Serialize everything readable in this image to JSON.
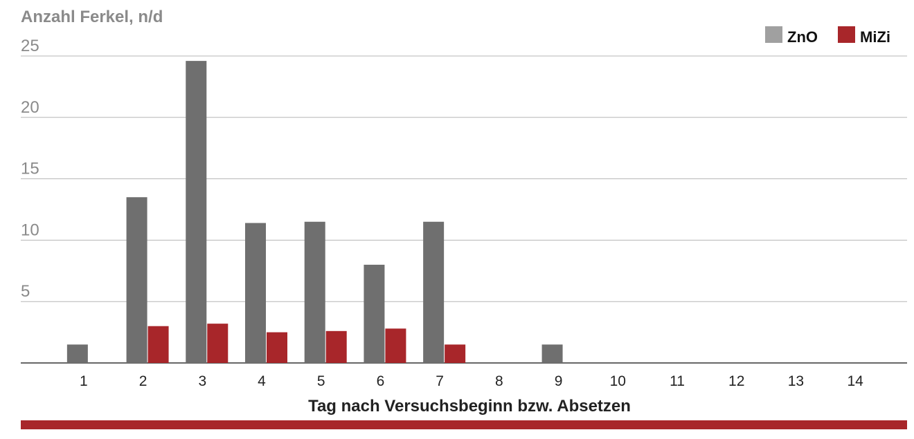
{
  "chart_data": {
    "type": "bar",
    "title": "Anzahl Ferkel, n/d",
    "x_label": "Tag nach Versuchsbeginn bzw. Absetzen",
    "categories": [
      "1",
      "2",
      "3",
      "4",
      "5",
      "6",
      "7",
      "8",
      "9",
      "10",
      "11",
      "12",
      "13",
      "14"
    ],
    "series": [
      {
        "name": "ZnO",
        "color": "#6f6f6f",
        "values": [
          1.5,
          13.5,
          24.6,
          11.4,
          11.5,
          8.0,
          11.5,
          0,
          1.5,
          0,
          0,
          0,
          0,
          0
        ]
      },
      {
        "name": "MiZi",
        "color": "#a8262a",
        "values": [
          0,
          3.0,
          3.2,
          2.5,
          2.6,
          2.8,
          1.5,
          0,
          0,
          0,
          0,
          0,
          0,
          0
        ]
      }
    ],
    "ylim": [
      0,
      25
    ],
    "yticks": [
      5,
      10,
      15,
      20,
      25
    ],
    "grid": true,
    "legend": "top-right"
  }
}
